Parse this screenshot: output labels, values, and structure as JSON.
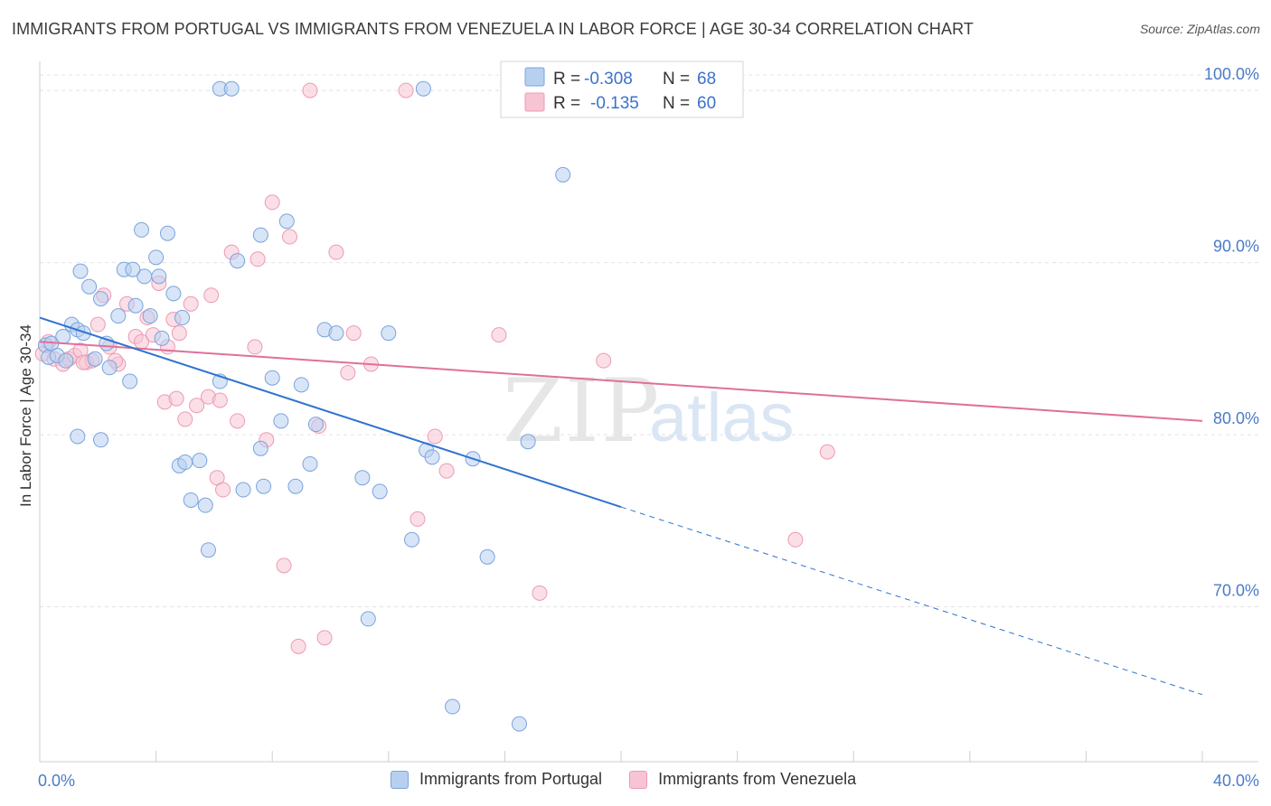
{
  "header": {
    "title": "IMMIGRANTS FROM PORTUGAL VS IMMIGRANTS FROM VENEZUELA IN LABOR FORCE | AGE 30-34 CORRELATION CHART",
    "source": "Source: ZipAtlas.com"
  },
  "watermark": {
    "zip": "ZIP",
    "atlas": "atlas"
  },
  "legend_box": {
    "rows": [
      {
        "r_label": "R =",
        "r_value": "-0.308",
        "n_label": "N =",
        "n_value": "68"
      },
      {
        "r_label": "R =",
        "r_value": "-0.135",
        "n_label": "N =",
        "n_value": "60"
      }
    ]
  },
  "legend_bottom": {
    "portugal": "Immigrants from Portugal",
    "venezuela": "Immigrants from Venezuela"
  },
  "colors": {
    "blue_fill": "#b8d0f0",
    "blue_stroke": "#7aa3de",
    "blue_line": "#2f73d0",
    "pink_fill": "#f6c4d3",
    "pink_stroke": "#ee9ab3",
    "pink_line": "#e07099",
    "axis_text": "#4a7bc8",
    "grid": "#e4e4e4"
  },
  "chart_data": {
    "type": "scatter",
    "title": "IMMIGRANTS FROM PORTUGAL VS IMMIGRANTS FROM VENEZUELA IN LABOR FORCE | AGE 30-34 CORRELATION CHART",
    "xlabel": "",
    "ylabel": "In Labor Force | Age 30-34",
    "xlim": [
      0,
      40
    ],
    "ylim": [
      61,
      102
    ],
    "x_tick_labels": [
      "0.0%",
      "40.0%"
    ],
    "y_ticks": [
      70,
      80,
      90,
      100
    ],
    "y_tick_labels": [
      "70.0%",
      "80.0%",
      "90.0%",
      "100.0%"
    ],
    "grid": true,
    "legend_position": "top-center",
    "series": [
      {
        "name": "Immigrants from Portugal",
        "color": "#7aa3de",
        "points": [
          [
            0.2,
            85.2
          ],
          [
            0.3,
            84.5
          ],
          [
            0.4,
            85.3
          ],
          [
            0.6,
            84.6
          ],
          [
            0.8,
            85.7
          ],
          [
            0.9,
            84.3
          ],
          [
            1.1,
            86.4
          ],
          [
            1.3,
            86.1
          ],
          [
            1.4,
            89.5
          ],
          [
            1.5,
            85.9
          ],
          [
            1.7,
            88.6
          ],
          [
            1.9,
            84.4
          ],
          [
            2.1,
            87.9
          ],
          [
            2.3,
            85.3
          ],
          [
            2.4,
            83.9
          ],
          [
            2.7,
            86.9
          ],
          [
            2.9,
            89.6
          ],
          [
            3.1,
            83.1
          ],
          [
            3.3,
            87.5
          ],
          [
            3.5,
            91.9
          ],
          [
            3.6,
            89.2
          ],
          [
            3.8,
            86.9
          ],
          [
            4.0,
            90.3
          ],
          [
            4.1,
            89.2
          ],
          [
            4.2,
            85.6
          ],
          [
            4.4,
            91.7
          ],
          [
            4.6,
            88.2
          ],
          [
            4.8,
            78.2
          ],
          [
            4.9,
            86.8
          ],
          [
            5.0,
            78.4
          ],
          [
            5.2,
            76.2
          ],
          [
            5.7,
            75.9
          ],
          [
            5.8,
            73.3
          ],
          [
            6.2,
            100.1
          ],
          [
            6.2,
            83.1
          ],
          [
            6.6,
            100.1
          ],
          [
            6.8,
            90.1
          ],
          [
            7.0,
            76.8
          ],
          [
            7.6,
            91.6
          ],
          [
            7.6,
            79.2
          ],
          [
            8.0,
            83.3
          ],
          [
            8.3,
            80.8
          ],
          [
            8.5,
            92.4
          ],
          [
            8.8,
            77.0
          ],
          [
            9.0,
            82.9
          ],
          [
            9.3,
            78.3
          ],
          [
            9.5,
            80.6
          ],
          [
            9.8,
            86.1
          ],
          [
            10.2,
            85.9
          ],
          [
            11.3,
            69.3
          ],
          [
            11.7,
            76.7
          ],
          [
            12.0,
            85.9
          ],
          [
            12.8,
            73.9
          ],
          [
            13.2,
            100.1
          ],
          [
            13.3,
            79.1
          ],
          [
            13.5,
            78.7
          ],
          [
            14.2,
            64.2
          ],
          [
            14.9,
            78.6
          ],
          [
            15.4,
            72.9
          ],
          [
            16.5,
            63.2
          ],
          [
            16.8,
            79.6
          ],
          [
            18.0,
            95.1
          ],
          [
            1.3,
            79.9
          ],
          [
            2.1,
            79.7
          ],
          [
            3.2,
            89.6
          ],
          [
            5.5,
            78.5
          ],
          [
            7.7,
            77.0
          ],
          [
            11.1,
            77.5
          ]
        ],
        "trend": {
          "x": [
            0,
            20
          ],
          "y": [
            86.8,
            75.8
          ]
        },
        "trend_extension": {
          "x": [
            20,
            40
          ],
          "y": [
            75.8,
            64.9
          ]
        }
      },
      {
        "name": "Immigrants from Venezuela",
        "color": "#ee9ab3",
        "points": [
          [
            0.1,
            84.7
          ],
          [
            0.3,
            85.4
          ],
          [
            0.5,
            84.4
          ],
          [
            0.8,
            84.1
          ],
          [
            1.0,
            84.4
          ],
          [
            1.2,
            84.6
          ],
          [
            1.4,
            84.9
          ],
          [
            1.6,
            84.2
          ],
          [
            1.8,
            84.3
          ],
          [
            2.0,
            86.4
          ],
          [
            2.2,
            88.1
          ],
          [
            2.4,
            85.1
          ],
          [
            2.7,
            84.1
          ],
          [
            3.0,
            87.6
          ],
          [
            3.3,
            85.7
          ],
          [
            3.5,
            85.4
          ],
          [
            3.7,
            86.8
          ],
          [
            3.9,
            85.8
          ],
          [
            4.1,
            88.8
          ],
          [
            4.3,
            81.9
          ],
          [
            4.4,
            85.1
          ],
          [
            4.6,
            86.7
          ],
          [
            4.8,
            85.9
          ],
          [
            5.0,
            80.9
          ],
          [
            5.2,
            87.6
          ],
          [
            5.4,
            81.7
          ],
          [
            5.8,
            82.2
          ],
          [
            5.9,
            88.1
          ],
          [
            6.1,
            77.5
          ],
          [
            6.3,
            76.8
          ],
          [
            6.6,
            90.6
          ],
          [
            6.8,
            80.8
          ],
          [
            7.4,
            85.1
          ],
          [
            7.5,
            90.2
          ],
          [
            7.8,
            79.7
          ],
          [
            8.0,
            93.5
          ],
          [
            8.4,
            72.4
          ],
          [
            8.6,
            91.5
          ],
          [
            8.9,
            67.7
          ],
          [
            9.3,
            100.0
          ],
          [
            9.6,
            80.5
          ],
          [
            9.8,
            68.2
          ],
          [
            10.2,
            90.6
          ],
          [
            10.6,
            83.6
          ],
          [
            10.8,
            85.9
          ],
          [
            11.4,
            84.1
          ],
          [
            12.6,
            100.0
          ],
          [
            13.0,
            75.1
          ],
          [
            13.6,
            79.9
          ],
          [
            14.0,
            77.9
          ],
          [
            15.8,
            85.8
          ],
          [
            17.2,
            70.8
          ],
          [
            18.0,
            100.0
          ],
          [
            19.4,
            84.3
          ],
          [
            26.0,
            73.9
          ],
          [
            27.1,
            79.0
          ],
          [
            1.5,
            84.2
          ],
          [
            2.6,
            84.3
          ],
          [
            4.7,
            82.1
          ],
          [
            6.2,
            82.0
          ]
        ],
        "trend": {
          "x": [
            0,
            40
          ],
          "y": [
            85.4,
            80.8
          ]
        }
      }
    ]
  }
}
